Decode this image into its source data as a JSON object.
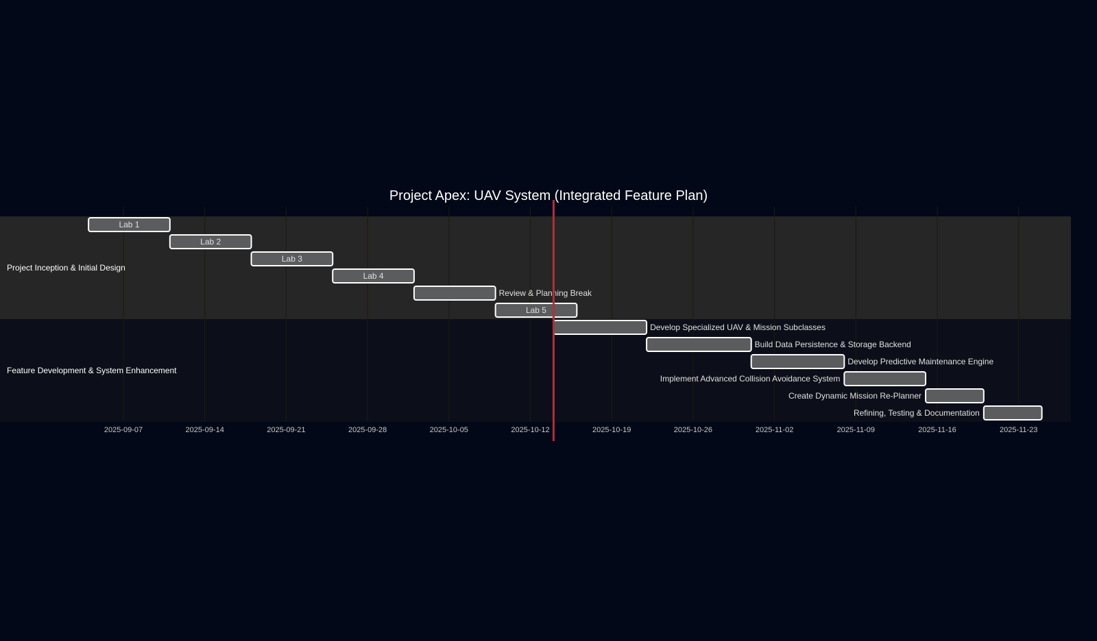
{
  "chart_data": {
    "type": "gantt",
    "title": "Project Apex: UAV System (Integrated Feature Plan)",
    "x_range": [
      "2025-08-31",
      "2025-11-26"
    ],
    "ticks": [
      "2025-09-07",
      "2025-09-14",
      "2025-09-21",
      "2025-09-28",
      "2025-10-05",
      "2025-10-12",
      "2025-10-19",
      "2025-10-26",
      "2025-11-02",
      "2025-11-09",
      "2025-11-16",
      "2025-11-23"
    ],
    "today": "2025-10-14",
    "grid": true,
    "sections": [
      {
        "name": "Project Inception & Initial Design",
        "tasks": [
          {
            "label": "Lab 1",
            "start": "2025-09-04",
            "end": "2025-09-11",
            "label_position": "inside"
          },
          {
            "label": "Lab 2",
            "start": "2025-09-11",
            "end": "2025-09-18",
            "label_position": "inside"
          },
          {
            "label": "Lab 3",
            "start": "2025-09-18",
            "end": "2025-09-25",
            "label_position": "inside"
          },
          {
            "label": "Lab 4",
            "start": "2025-09-25",
            "end": "2025-10-02",
            "label_position": "inside"
          },
          {
            "label": "Review & Planning Break",
            "start": "2025-10-02",
            "end": "2025-10-09",
            "label_position": "right"
          },
          {
            "label": "Lab 5",
            "start": "2025-10-09",
            "end": "2025-10-16",
            "label_position": "inside"
          }
        ]
      },
      {
        "name": "Feature Development & System Enhancement",
        "tasks": [
          {
            "label": "Develop Specialized UAV & Mission Subclasses",
            "start": "2025-10-14",
            "end": "2025-10-22",
            "label_position": "right"
          },
          {
            "label": "Build Data Persistence & Storage Backend",
            "start": "2025-10-22",
            "end": "2025-10-31",
            "label_position": "right"
          },
          {
            "label": "Develop Predictive Maintenance Engine",
            "start": "2025-10-31",
            "end": "2025-11-08",
            "label_position": "right"
          },
          {
            "label": "Implement Advanced Collision Avoidance System",
            "start": "2025-11-08",
            "end": "2025-11-15",
            "label_position": "left"
          },
          {
            "label": "Create Dynamic Mission Re-Planner",
            "start": "2025-11-15",
            "end": "2025-11-20",
            "label_position": "left"
          },
          {
            "label": "Refining, Testing & Documentation",
            "start": "2025-11-20",
            "end": "2025-11-25",
            "label_position": "left"
          }
        ]
      }
    ]
  },
  "colors": {
    "background": "#020817",
    "section_1_band": "#262626",
    "section_2_band": "#0c0f19",
    "bar_fill": "#5a5c5e",
    "bar_stroke": "#ffffff",
    "grid": "#1c1a10",
    "today_line": "#b0303a",
    "text": "#ffffff",
    "tick_text": "#c8c8c8"
  }
}
